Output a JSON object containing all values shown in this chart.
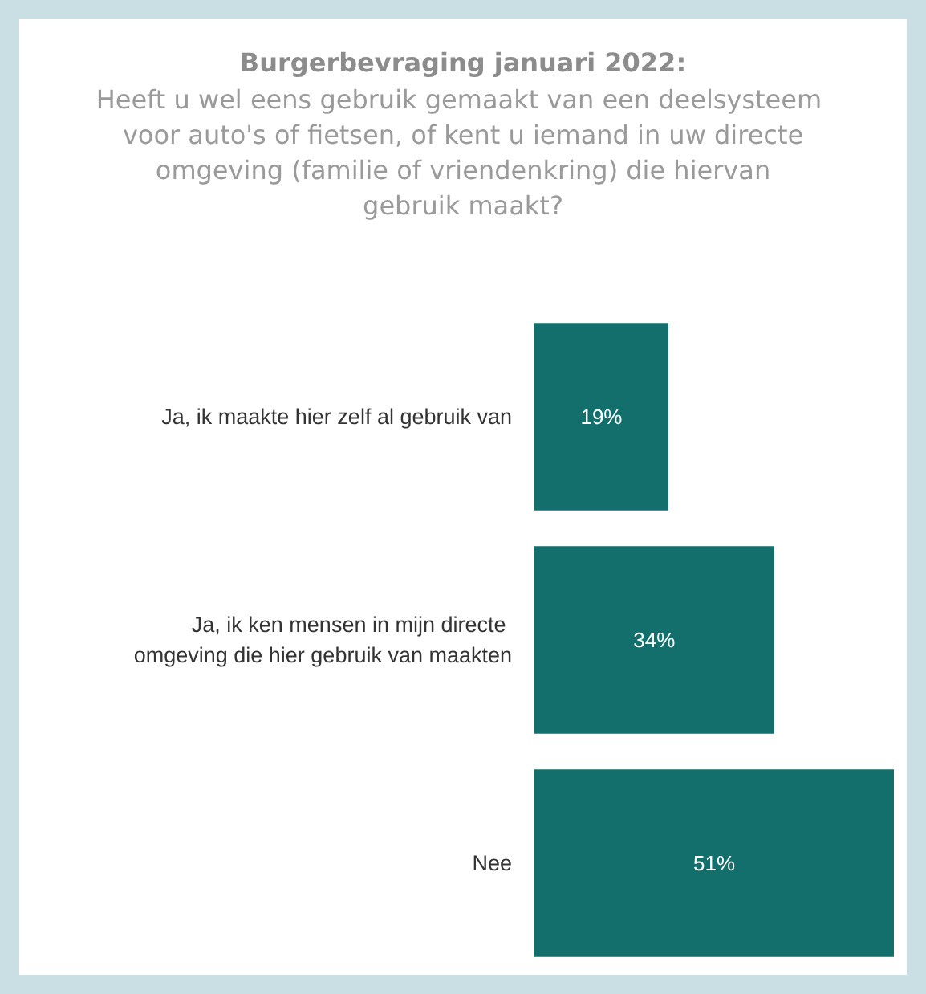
{
  "chart_data": {
    "type": "bar",
    "orientation": "horizontal",
    "title": "Burgerbevraging januari 2022:",
    "subtitle": "Heeft u wel eens gebruik gemaakt van een deelsysteem voor auto's of fietsen, of kent u iemand in uw directe omgeving (familie of vriendenkring) die hiervan gebruik maakt?",
    "categories": [
      "Ja, ik maakte hier zelf al gebruik van",
      "Ja, ik ken mensen in mijn directe omgeving die hier gebruik van maakten",
      "Nee"
    ],
    "values": [
      19,
      34,
      51
    ],
    "color": "#136f6b",
    "value_labels": [
      "19%",
      "34%",
      "51%"
    ],
    "grid": false,
    "tick_labels": "y"
  }
}
